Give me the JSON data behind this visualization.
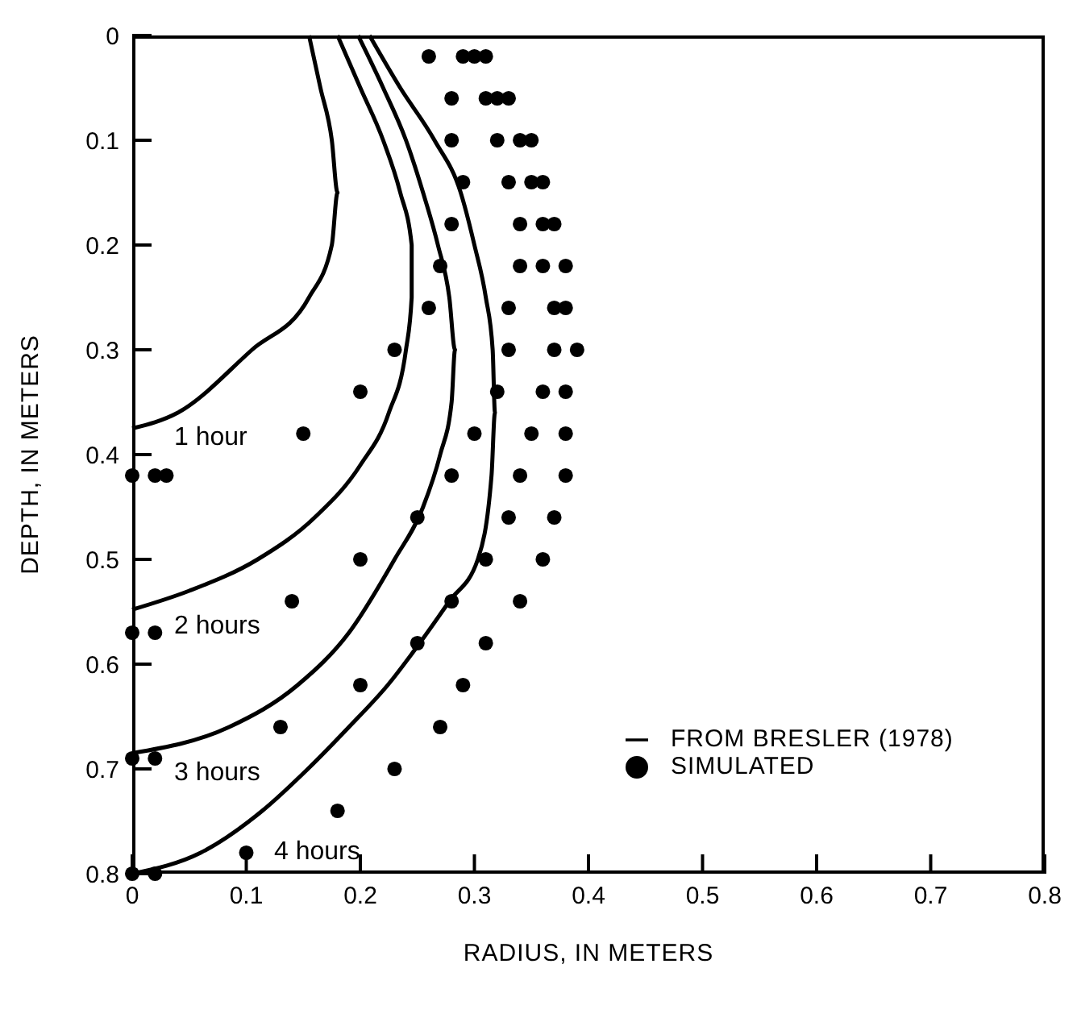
{
  "chart_data": {
    "type": "line",
    "xlabel": "RADIUS, IN METERS",
    "ylabel": "DEPTH, IN METERS",
    "xlim": [
      0,
      0.8
    ],
    "xticks": [
      0,
      0.1,
      0.2,
      0.3,
      0.4,
      0.5,
      0.6,
      0.7,
      0.8
    ],
    "ylim": [
      0.8,
      0
    ],
    "yticks": [
      0,
      0.1,
      0.2,
      0.3,
      0.4,
      0.5,
      0.6,
      0.7,
      0.8
    ],
    "grid": false,
    "legend": "bottom right",
    "marker": "none",
    "line_style": "solid",
    "series": [
      {
        "name": "FROM BRESLER (1978)",
        "color": "#000000",
        "x": [
          0.155,
          0.165,
          0.175,
          0.18,
          0.175,
          0.155,
          0.105,
          0.04,
          0
        ],
        "values": [
          0,
          0.05,
          0.1,
          0.15,
          0.2,
          0.25,
          0.3,
          0.36,
          0.375
        ]
      },
      {
        "color": "#000000",
        "x": [
          0.18,
          0.2,
          0.22,
          0.235,
          0.245,
          0.245,
          0.24,
          0.225,
          0.2,
          0.16,
          0.11,
          0.05,
          0
        ],
        "values": [
          0,
          0.05,
          0.1,
          0.15,
          0.2,
          0.25,
          0.3,
          0.36,
          0.41,
          0.46,
          0.5,
          0.53,
          0.548
        ]
      },
      {
        "color": "#000000",
        "x": [
          0.198,
          0.22,
          0.24,
          0.255,
          0.268,
          0.278,
          0.283,
          0.28,
          0.27,
          0.255,
          0.23,
          0.19,
          0.145,
          0.085,
          0
        ],
        "values": [
          0,
          0.05,
          0.1,
          0.15,
          0.2,
          0.25,
          0.3,
          0.35,
          0.4,
          0.45,
          0.5,
          0.57,
          0.62,
          0.66,
          0.685
        ]
      },
      {
        "color": "#000000",
        "x": [
          0.208,
          0.235,
          0.265,
          0.288,
          0.3,
          0.31,
          0.316,
          0.318,
          0.315,
          0.303,
          0.278,
          0.252,
          0.224,
          0.19,
          0.154,
          0.114,
          0.06,
          0
        ],
        "values": [
          0,
          0.05,
          0.1,
          0.15,
          0.2,
          0.25,
          0.3,
          0.36,
          0.42,
          0.5,
          0.54,
          0.58,
          0.62,
          0.66,
          0.7,
          0.74,
          0.78,
          0.8
        ]
      },
      {
        "name": "SIMULATED",
        "type": "scatter",
        "marker": "circle",
        "color": "#000000",
        "x": [
          0.26,
          0.29,
          0.3,
          0.31,
          0.28,
          0.31,
          0.32,
          0.33,
          0.28,
          0.32,
          0.34,
          0.35,
          0.29,
          0.33,
          0.35,
          0.36,
          0.28,
          0.34,
          0.36,
          0.37,
          0.27,
          0.34,
          0.36,
          0.38,
          0.26,
          0.33,
          0.37,
          0.38,
          0.23,
          0.33,
          0.37,
          0.39,
          0.2,
          0.32,
          0.36,
          0.38,
          0.15,
          0.3,
          0.35,
          0.38,
          0,
          0.02,
          0.03,
          0.28,
          0.34,
          0.38,
          0.25,
          0.33,
          0.37,
          0.2,
          0.31,
          0.36,
          0.14,
          0.28,
          0.34,
          0,
          0.02,
          0.25,
          0.31,
          0.2,
          0.29,
          0.13,
          0.27,
          0,
          0.02,
          0.23,
          0.18,
          0.1,
          0,
          0.02
        ],
        "values": [
          0.02,
          0.02,
          0.02,
          0.02,
          0.06,
          0.06,
          0.06,
          0.06,
          0.1,
          0.1,
          0.1,
          0.1,
          0.14,
          0.14,
          0.14,
          0.14,
          0.18,
          0.18,
          0.18,
          0.18,
          0.22,
          0.22,
          0.22,
          0.22,
          0.26,
          0.26,
          0.26,
          0.26,
          0.3,
          0.3,
          0.3,
          0.3,
          0.34,
          0.34,
          0.34,
          0.34,
          0.38,
          0.38,
          0.38,
          0.38,
          0.42,
          0.42,
          0.42,
          0.42,
          0.42,
          0.42,
          0.46,
          0.46,
          0.46,
          0.5,
          0.5,
          0.5,
          0.54,
          0.54,
          0.54,
          0.57,
          0.57,
          0.58,
          0.58,
          0.62,
          0.62,
          0.66,
          0.66,
          0.69,
          0.69,
          0.7,
          0.74,
          0.78,
          0.8,
          0.8
        ]
      }
    ],
    "annotations": [
      "1 hour",
      "2 hours",
      "3 hours",
      "4 hours"
    ]
  }
}
